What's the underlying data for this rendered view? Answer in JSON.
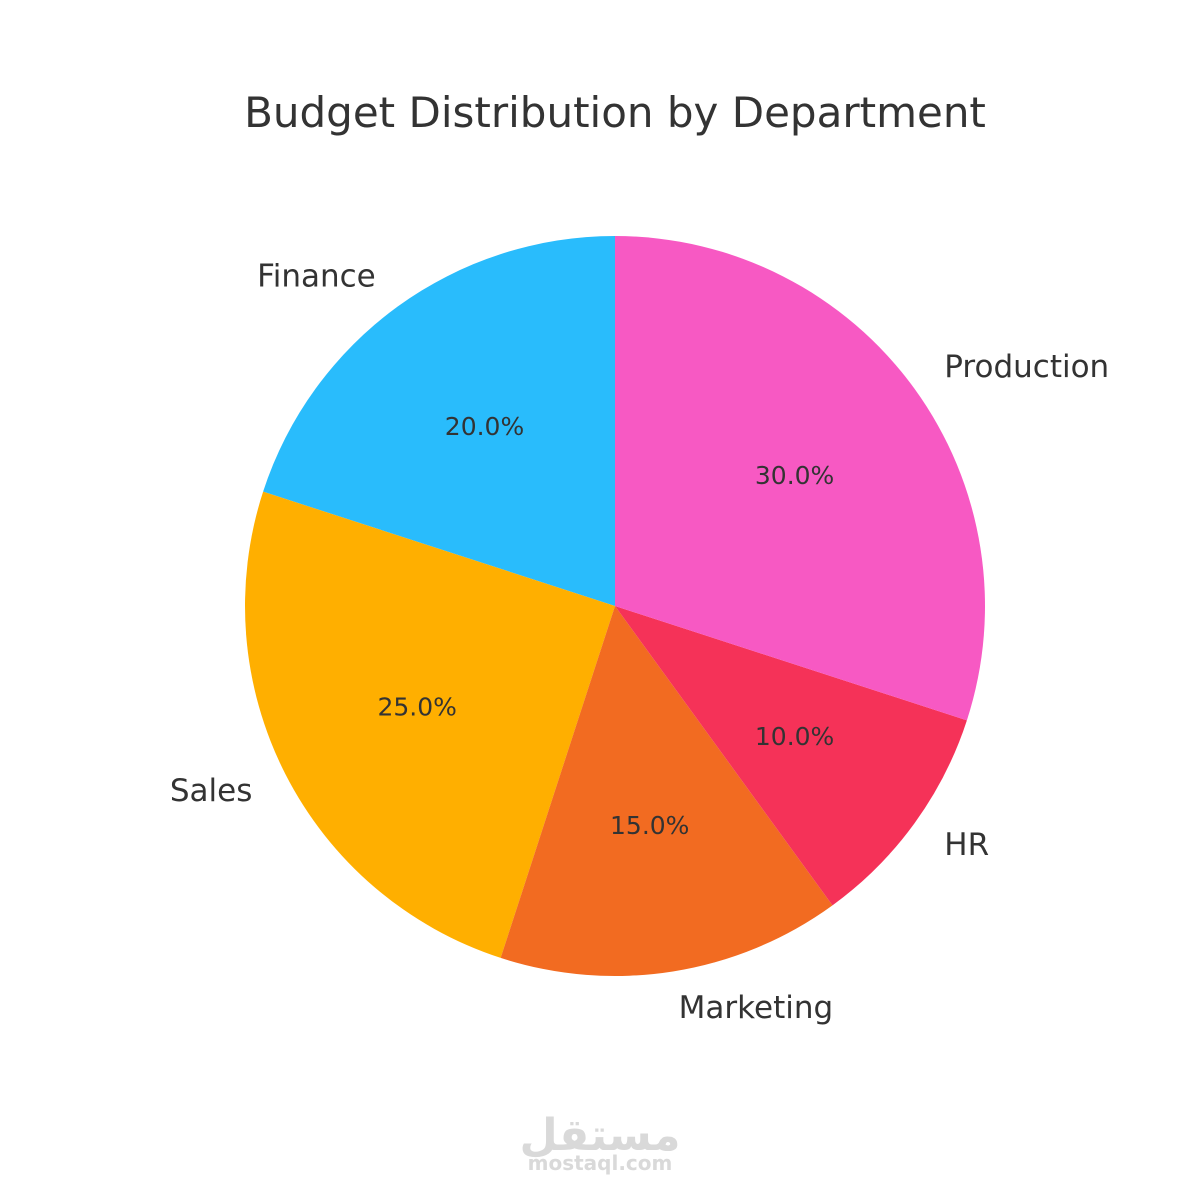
{
  "chart_data": {
    "type": "pie",
    "title": "Budget Distribution by Department",
    "start_angle_deg": 90,
    "direction": "counterclockwise",
    "slices": [
      {
        "label": "Finance",
        "value": 20.0,
        "pct_label": "20.0%",
        "color": "#29BCFC"
      },
      {
        "label": "Sales",
        "value": 25.0,
        "pct_label": "25.0%",
        "color": "#FFAF00"
      },
      {
        "label": "Marketing",
        "value": 15.0,
        "pct_label": "15.0%",
        "color": "#F26B21"
      },
      {
        "label": "HR",
        "value": 10.0,
        "pct_label": "10.0%",
        "color": "#F53258"
      },
      {
        "label": "Production",
        "value": 30.0,
        "pct_label": "30.0%",
        "color": "#F759C3"
      }
    ]
  },
  "watermark": {
    "logo_text": "مستقل",
    "url": "mostaql.com"
  }
}
